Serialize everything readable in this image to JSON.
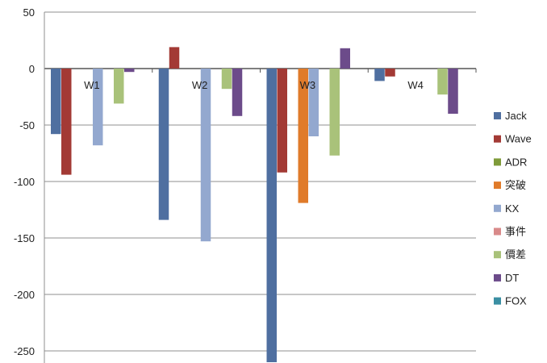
{
  "chart_data": {
    "type": "bar",
    "categories": [
      "W1",
      "W2",
      "W3",
      "W4"
    ],
    "ylim": [
      -260,
      50
    ],
    "yticks": [
      50,
      0,
      -50,
      -100,
      -150,
      -200,
      -250
    ],
    "grid": true,
    "legend_position": "right",
    "series": [
      {
        "name": "Jack",
        "color": "#4f6fa0",
        "values": [
          -58,
          -134,
          -260,
          -11
        ]
      },
      {
        "name": "Wave",
        "color": "#a33a35",
        "values": [
          -94,
          19,
          -92,
          -7
        ]
      },
      {
        "name": "ADR",
        "color": "#7f9b3a",
        "values": [
          0,
          0,
          0,
          0
        ]
      },
      {
        "name": "突破",
        "color": "#e07b2a",
        "values": [
          0,
          0,
          -119,
          0
        ]
      },
      {
        "name": "KX",
        "color": "#93a8cf",
        "values": [
          -68,
          -153,
          -60,
          0
        ]
      },
      {
        "name": "事件",
        "color": "#d98a8a",
        "values": [
          0,
          0,
          0,
          0
        ]
      },
      {
        "name": "價差",
        "color": "#a9c27a",
        "values": [
          -31,
          -18,
          -77,
          -23
        ]
      },
      {
        "name": "DT",
        "color": "#6c4b8a",
        "values": [
          -3,
          -42,
          18,
          -40
        ]
      },
      {
        "name": "FOX",
        "color": "#3b8fa3",
        "values": [
          0,
          0,
          0,
          0
        ]
      }
    ]
  }
}
